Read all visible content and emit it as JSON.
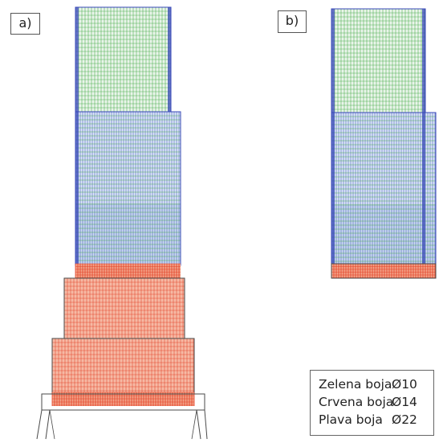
{
  "panels": {
    "a_label": "a)",
    "b_label": "b)"
  },
  "legend": {
    "items": [
      {
        "name": "Zelena boja",
        "diameter": "Ø10",
        "color": "#3fa83f"
      },
      {
        "name": "Crvena boja",
        "diameter": "Ø14",
        "color": "#e0381e"
      },
      {
        "name": "Plava boja",
        "diameter": "Ø22",
        "color": "#3848b8"
      }
    ]
  },
  "colors": {
    "green_mesh": "#3fa83f",
    "red_mesh": "#e0381e",
    "blue_mesh": "#3848b8",
    "green_fill": "#e9f4ea",
    "blue_fill": "#c9dbee",
    "red_fill": "#f6b9a4",
    "outline": "#4a4a4a"
  }
}
